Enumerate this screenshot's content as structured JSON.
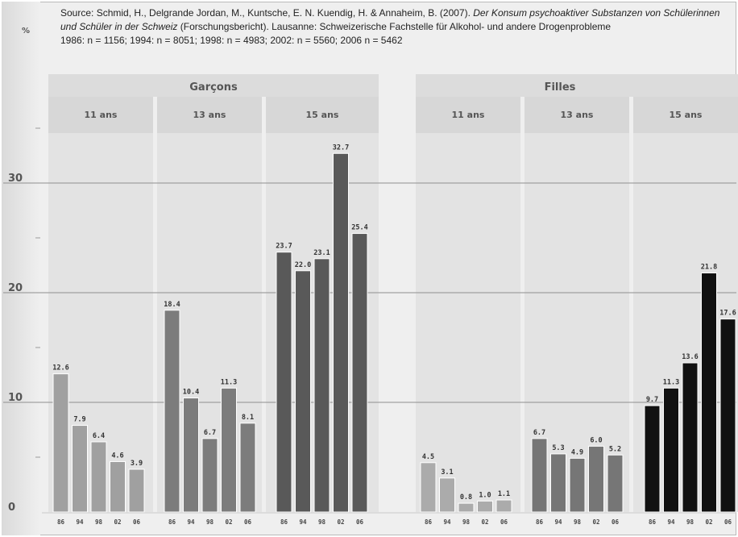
{
  "source": {
    "prefix": "Source: Schmid, H., Delgrande Jordan, M., Kuntsche, E. N. Kuendig, H. & Annaheim, B. (2007). ",
    "title_italic": "Der Konsum psychoaktiver Substanzen von Schülerinnen und Schüler in der Schweiz",
    "suffix": " (Forschungsbericht). Lausanne: Schweizerische Fachstelle für Alkohol- und andere Drogenprobleme",
    "samples": "1986: n = 1156; 1994: n = 8051; 1998: n = 4983; 2002: n = 5560; 2006 n = 5462"
  },
  "chart_data": {
    "type": "bar",
    "ylabel": "%",
    "ylim": [
      0,
      40
    ],
    "yticks": [
      0,
      10,
      20,
      30
    ],
    "grid": true,
    "years": [
      "86",
      "94",
      "98",
      "02",
      "06"
    ],
    "groups": [
      {
        "name": "Garçons",
        "series": [
          {
            "name": "11 ans",
            "values": [
              12.6,
              7.9,
              6.4,
              4.6,
              3.9
            ],
            "labels": [
              "12.6",
              "7.9",
              "6.4",
              "4.6",
              "3.9"
            ],
            "color": "#a0a0a0"
          },
          {
            "name": "13 ans",
            "values": [
              18.4,
              10.4,
              6.7,
              11.3,
              8.1
            ],
            "labels": [
              "18.4",
              "10.4",
              "6.7",
              "11.3",
              "8.1"
            ],
            "color": "#7c7c7c"
          },
          {
            "name": "15 ans",
            "values": [
              23.7,
              22.0,
              23.1,
              32.7,
              25.4
            ],
            "labels": [
              "23.7",
              "22.0",
              "23.1",
              "32.7",
              "25.4"
            ],
            "color": "#595959"
          }
        ]
      },
      {
        "name": "Filles",
        "series": [
          {
            "name": "11 ans",
            "values": [
              4.5,
              3.1,
              0.8,
              1.0,
              1.1
            ],
            "labels": [
              "4.5",
              "3.1",
              "0.8",
              "1.0",
              "1.1"
            ],
            "color": "#ababab"
          },
          {
            "name": "13 ans",
            "values": [
              6.7,
              5.3,
              4.9,
              6.0,
              5.2
            ],
            "labels": [
              "6.7",
              "5.3",
              "4.9",
              "6.0",
              "5.2"
            ],
            "color": "#767676"
          },
          {
            "name": "15 ans",
            "values": [
              9.7,
              11.3,
              13.6,
              21.8,
              17.6
            ],
            "labels": [
              "9.7",
              "11.3",
              "13.6",
              "21.8",
              "17.6"
            ],
            "color": "#111111"
          }
        ]
      }
    ]
  }
}
